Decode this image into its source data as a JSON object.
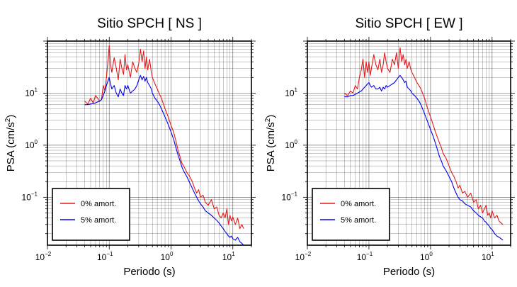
{
  "chart_data": [
    {
      "type": "line",
      "title": "Sitio SPCH [ NS ]",
      "xlabel": "Periodo (s)",
      "ylabel_base": "PSA (cm/s",
      "ylabel_sup": "2",
      "ylabel_tail": ")",
      "xscale": "log",
      "yscale": "log",
      "xlim": [
        0.01,
        20
      ],
      "ylim": [
        0.012,
        100
      ],
      "grid": true,
      "legend_position": "bottom-left",
      "xticks": [
        {
          "base": "10",
          "exp": "−2"
        },
        {
          "base": "10",
          "exp": "−1"
        },
        {
          "base": "10",
          "exp": "0"
        },
        {
          "base": "10",
          "exp": "1"
        }
      ],
      "yticks": [
        {
          "base": "10",
          "exp": "−1"
        },
        {
          "base": "10",
          "exp": "0"
        },
        {
          "base": "10",
          "exp": "1"
        }
      ],
      "series": [
        {
          "name": "0% amort.",
          "color": "#e41a1c",
          "x": [
            0.04,
            0.045,
            0.05,
            0.055,
            0.06,
            0.065,
            0.07,
            0.075,
            0.08,
            0.085,
            0.09,
            0.095,
            0.1,
            0.105,
            0.11,
            0.12,
            0.13,
            0.14,
            0.15,
            0.16,
            0.17,
            0.18,
            0.19,
            0.2,
            0.22,
            0.24,
            0.26,
            0.28,
            0.3,
            0.32,
            0.34,
            0.36,
            0.38,
            0.4,
            0.42,
            0.45,
            0.48,
            0.5,
            0.55,
            0.6,
            0.65,
            0.7,
            0.8,
            0.9,
            1.0,
            1.1,
            1.2,
            1.3,
            1.4,
            1.5,
            1.6,
            1.8,
            2.0,
            2.2,
            2.4,
            2.6,
            2.8,
            3.0,
            3.3,
            3.6,
            4.0,
            4.5,
            5.0,
            5.5,
            6.0,
            6.5,
            7.0,
            7.5,
            8.0,
            8.5,
            9.0,
            9.5,
            10,
            11,
            12,
            13,
            14,
            15
          ],
          "y": [
            7,
            6.2,
            8,
            6.5,
            9,
            8,
            7,
            7.5,
            14,
            11,
            20,
            40,
            82,
            35,
            25,
            48,
            30,
            18,
            45,
            30,
            23,
            55,
            28,
            35,
            20,
            40,
            30,
            25,
            38,
            70,
            40,
            65,
            30,
            50,
            28,
            45,
            25,
            20,
            15,
            12,
            9.5,
            8,
            5,
            3.5,
            2.4,
            1.8,
            1.2,
            0.8,
            0.6,
            0.45,
            0.4,
            0.3,
            0.25,
            0.2,
            0.15,
            0.12,
            0.14,
            0.1,
            0.11,
            0.08,
            0.07,
            0.09,
            0.06,
            0.065,
            0.045,
            0.04,
            0.05,
            0.04,
            0.06,
            0.03,
            0.045,
            0.035,
            0.042,
            0.03,
            0.04,
            0.025,
            0.03,
            0.025
          ]
        },
        {
          "name": "5% amort.",
          "color": "#0000ee",
          "x": [
            0.04,
            0.045,
            0.05,
            0.055,
            0.06,
            0.065,
            0.07,
            0.075,
            0.08,
            0.085,
            0.09,
            0.095,
            0.1,
            0.105,
            0.11,
            0.12,
            0.13,
            0.14,
            0.15,
            0.16,
            0.17,
            0.18,
            0.19,
            0.2,
            0.22,
            0.24,
            0.26,
            0.28,
            0.3,
            0.32,
            0.34,
            0.36,
            0.38,
            0.4,
            0.42,
            0.45,
            0.48,
            0.5,
            0.55,
            0.6,
            0.65,
            0.7,
            0.8,
            0.9,
            1.0,
            1.1,
            1.2,
            1.3,
            1.4,
            1.5,
            1.6,
            1.8,
            2.0,
            2.2,
            2.4,
            2.6,
            2.8,
            3.0,
            3.3,
            3.6,
            4.0,
            4.5,
            5.0,
            5.5,
            6.0,
            6.5,
            7.0,
            7.5,
            8.0,
            8.5,
            9.0,
            9.5,
            10,
            11,
            12,
            13,
            14,
            15
          ],
          "y": [
            6,
            6,
            6.2,
            6.3,
            6.5,
            6.8,
            7,
            7.5,
            9,
            11,
            14,
            17,
            20,
            15,
            12,
            14,
            10,
            8.5,
            12,
            10,
            9,
            14,
            12,
            14,
            10,
            11,
            12,
            14,
            18,
            22,
            18,
            21,
            17,
            20,
            16,
            14,
            12,
            10,
            8,
            7,
            6,
            5,
            3.5,
            2.5,
            1.8,
            1.3,
            0.9,
            0.65,
            0.5,
            0.38,
            0.32,
            0.25,
            0.19,
            0.15,
            0.12,
            0.1,
            0.085,
            0.075,
            0.065,
            0.055,
            0.05,
            0.045,
            0.04,
            0.036,
            0.032,
            0.028,
            0.025,
            0.022,
            0.02,
            0.018,
            0.017,
            0.018,
            0.016,
            0.015,
            0.017,
            0.014,
            0.013,
            0.012
          ]
        }
      ]
    },
    {
      "type": "line",
      "title": "Sitio SPCH [ EW ]",
      "xlabel": "Periodo (s)",
      "ylabel_base": "PSA (cm/s",
      "ylabel_sup": "2",
      "ylabel_tail": ")",
      "xscale": "log",
      "yscale": "log",
      "xlim": [
        0.01,
        20
      ],
      "ylim": [
        0.012,
        100
      ],
      "grid": true,
      "legend_position": "bottom-left",
      "xticks": [
        {
          "base": "10",
          "exp": "−2"
        },
        {
          "base": "10",
          "exp": "−1"
        },
        {
          "base": "10",
          "exp": "0"
        },
        {
          "base": "10",
          "exp": "1"
        }
      ],
      "yticks": [
        {
          "base": "10",
          "exp": "−1"
        },
        {
          "base": "10",
          "exp": "0"
        },
        {
          "base": "10",
          "exp": "1"
        }
      ],
      "series": [
        {
          "name": "0% amort.",
          "color": "#e41a1c",
          "x": [
            0.04,
            0.045,
            0.05,
            0.055,
            0.06,
            0.065,
            0.07,
            0.075,
            0.08,
            0.085,
            0.09,
            0.095,
            0.1,
            0.105,
            0.11,
            0.12,
            0.13,
            0.14,
            0.15,
            0.16,
            0.17,
            0.18,
            0.19,
            0.2,
            0.22,
            0.24,
            0.26,
            0.28,
            0.3,
            0.32,
            0.34,
            0.36,
            0.38,
            0.4,
            0.42,
            0.45,
            0.48,
            0.5,
            0.55,
            0.6,
            0.65,
            0.7,
            0.8,
            0.9,
            1.0,
            1.1,
            1.2,
            1.3,
            1.4,
            1.5,
            1.6,
            1.8,
            2.0,
            2.2,
            2.4,
            2.6,
            2.8,
            3.0,
            3.3,
            3.6,
            4.0,
            4.5,
            5.0,
            5.5,
            6.0,
            6.5,
            7.0,
            7.5,
            8.0,
            8.5,
            9.0,
            9.5,
            10,
            11,
            12,
            13,
            14,
            15
          ],
          "y": [
            10,
            9,
            11,
            10,
            14,
            12,
            20,
            28,
            45,
            20,
            40,
            25,
            40,
            22,
            30,
            55,
            35,
            28,
            45,
            25,
            35,
            60,
            40,
            30,
            25,
            45,
            35,
            60,
            30,
            75,
            40,
            55,
            35,
            45,
            30,
            40,
            28,
            25,
            20,
            16,
            14,
            12,
            8,
            5,
            3.5,
            2.5,
            1.8,
            1.4,
            1.1,
            0.9,
            0.7,
            0.55,
            0.4,
            0.3,
            0.25,
            0.2,
            0.15,
            0.17,
            0.12,
            0.13,
            0.1,
            0.12,
            0.08,
            0.09,
            0.06,
            0.07,
            0.05,
            0.06,
            0.07,
            0.045,
            0.05,
            0.04,
            0.055,
            0.04,
            0.045,
            0.035,
            0.032,
            0.03
          ]
        },
        {
          "name": "5% amort.",
          "color": "#0000ee",
          "x": [
            0.04,
            0.045,
            0.05,
            0.055,
            0.06,
            0.065,
            0.07,
            0.075,
            0.08,
            0.085,
            0.09,
            0.095,
            0.1,
            0.105,
            0.11,
            0.12,
            0.13,
            0.14,
            0.15,
            0.16,
            0.17,
            0.18,
            0.19,
            0.2,
            0.22,
            0.24,
            0.26,
            0.28,
            0.3,
            0.32,
            0.34,
            0.36,
            0.38,
            0.4,
            0.42,
            0.45,
            0.48,
            0.5,
            0.55,
            0.6,
            0.65,
            0.7,
            0.8,
            0.9,
            1.0,
            1.1,
            1.2,
            1.3,
            1.4,
            1.5,
            1.6,
            1.8,
            2.0,
            2.2,
            2.4,
            2.6,
            2.8,
            3.0,
            3.3,
            3.6,
            4.0,
            4.5,
            5.0,
            5.5,
            6.0,
            6.5,
            7.0,
            7.5,
            8.0,
            8.5,
            9.0,
            9.5,
            10,
            11,
            12,
            13,
            14,
            15
          ],
          "y": [
            8.5,
            8.5,
            9,
            9,
            9.5,
            10,
            10.5,
            11,
            12,
            13,
            14,
            15,
            16,
            14,
            13,
            14,
            12,
            12,
            13,
            11,
            13,
            12,
            14,
            13,
            14,
            15,
            16,
            18,
            20,
            22,
            20,
            18,
            16,
            17,
            13,
            12,
            11,
            10,
            9,
            8,
            7,
            6,
            4,
            2.8,
            2,
            1.5,
            1.1,
            0.8,
            0.6,
            0.5,
            0.4,
            0.32,
            0.25,
            0.2,
            0.15,
            0.12,
            0.1,
            0.09,
            0.085,
            0.075,
            0.07,
            0.065,
            0.055,
            0.05,
            0.045,
            0.042,
            0.04,
            0.035,
            0.033,
            0.03,
            0.028,
            0.025,
            0.024,
            0.02,
            0.018,
            0.017,
            0.016,
            0.015
          ]
        }
      ]
    }
  ]
}
